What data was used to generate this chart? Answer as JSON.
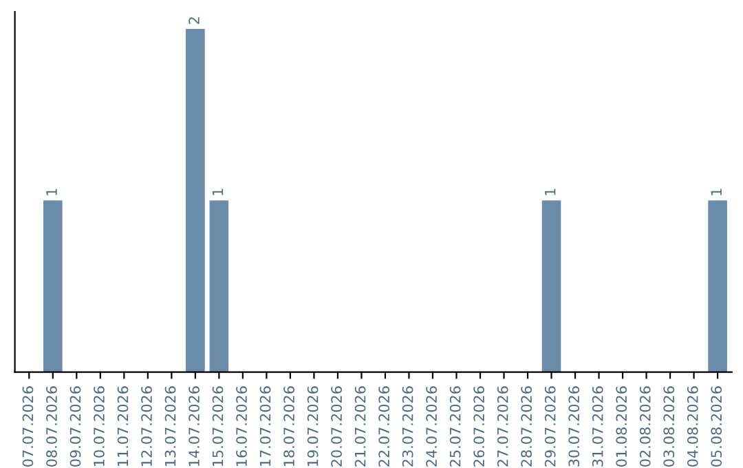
{
  "chart_data": {
    "type": "bar",
    "categories": [
      "07.07.2026",
      "08.07.2026",
      "09.07.2026",
      "10.07.2026",
      "11.07.2026",
      "12.07.2026",
      "13.07.2026",
      "14.07.2026",
      "15.07.2026",
      "16.07.2026",
      "17.07.2026",
      "18.07.2026",
      "19.07.2026",
      "20.07.2026",
      "21.07.2026",
      "22.07.2026",
      "23.07.2026",
      "24.07.2026",
      "25.07.2026",
      "26.07.2026",
      "27.07.2026",
      "28.07.2026",
      "29.07.2026",
      "30.07.2026",
      "31.07.2026",
      "01.08.2026",
      "02.08.2026",
      "03.08.2026",
      "04.08.2026",
      "05.08.2026"
    ],
    "values": [
      0,
      1,
      0,
      0,
      0,
      0,
      0,
      2,
      1,
      0,
      0,
      0,
      0,
      0,
      0,
      0,
      0,
      0,
      0,
      0,
      0,
      0,
      1,
      0,
      0,
      0,
      0,
      0,
      0,
      1
    ],
    "value_labels": [
      null,
      "1",
      null,
      null,
      null,
      null,
      null,
      "2",
      "1",
      null,
      null,
      null,
      null,
      null,
      null,
      null,
      null,
      null,
      null,
      null,
      null,
      null,
      "1",
      null,
      null,
      null,
      null,
      null,
      null,
      "1"
    ],
    "color": "#6b8bab",
    "tick_labels": "x",
    "grid": false,
    "legend": false
  }
}
